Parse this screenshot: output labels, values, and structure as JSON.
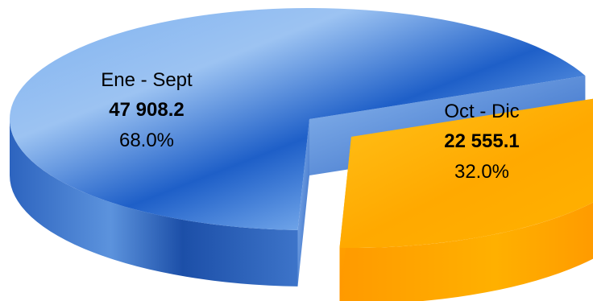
{
  "chart_data": {
    "type": "pie",
    "style": "3d-exploded",
    "title": "",
    "slices": [
      {
        "label": "Ene - Sept",
        "value": 47908.2,
        "value_text": "47 908.2",
        "percent": 68.0,
        "percent_text": "68.0%",
        "color": "#2E6FD1"
      },
      {
        "label": "Oct - Dic",
        "value": 22555.1,
        "value_text": "22 555.1",
        "percent": 32.0,
        "percent_text": "32.0%",
        "color": "#FFB000"
      }
    ],
    "legend": "none"
  }
}
